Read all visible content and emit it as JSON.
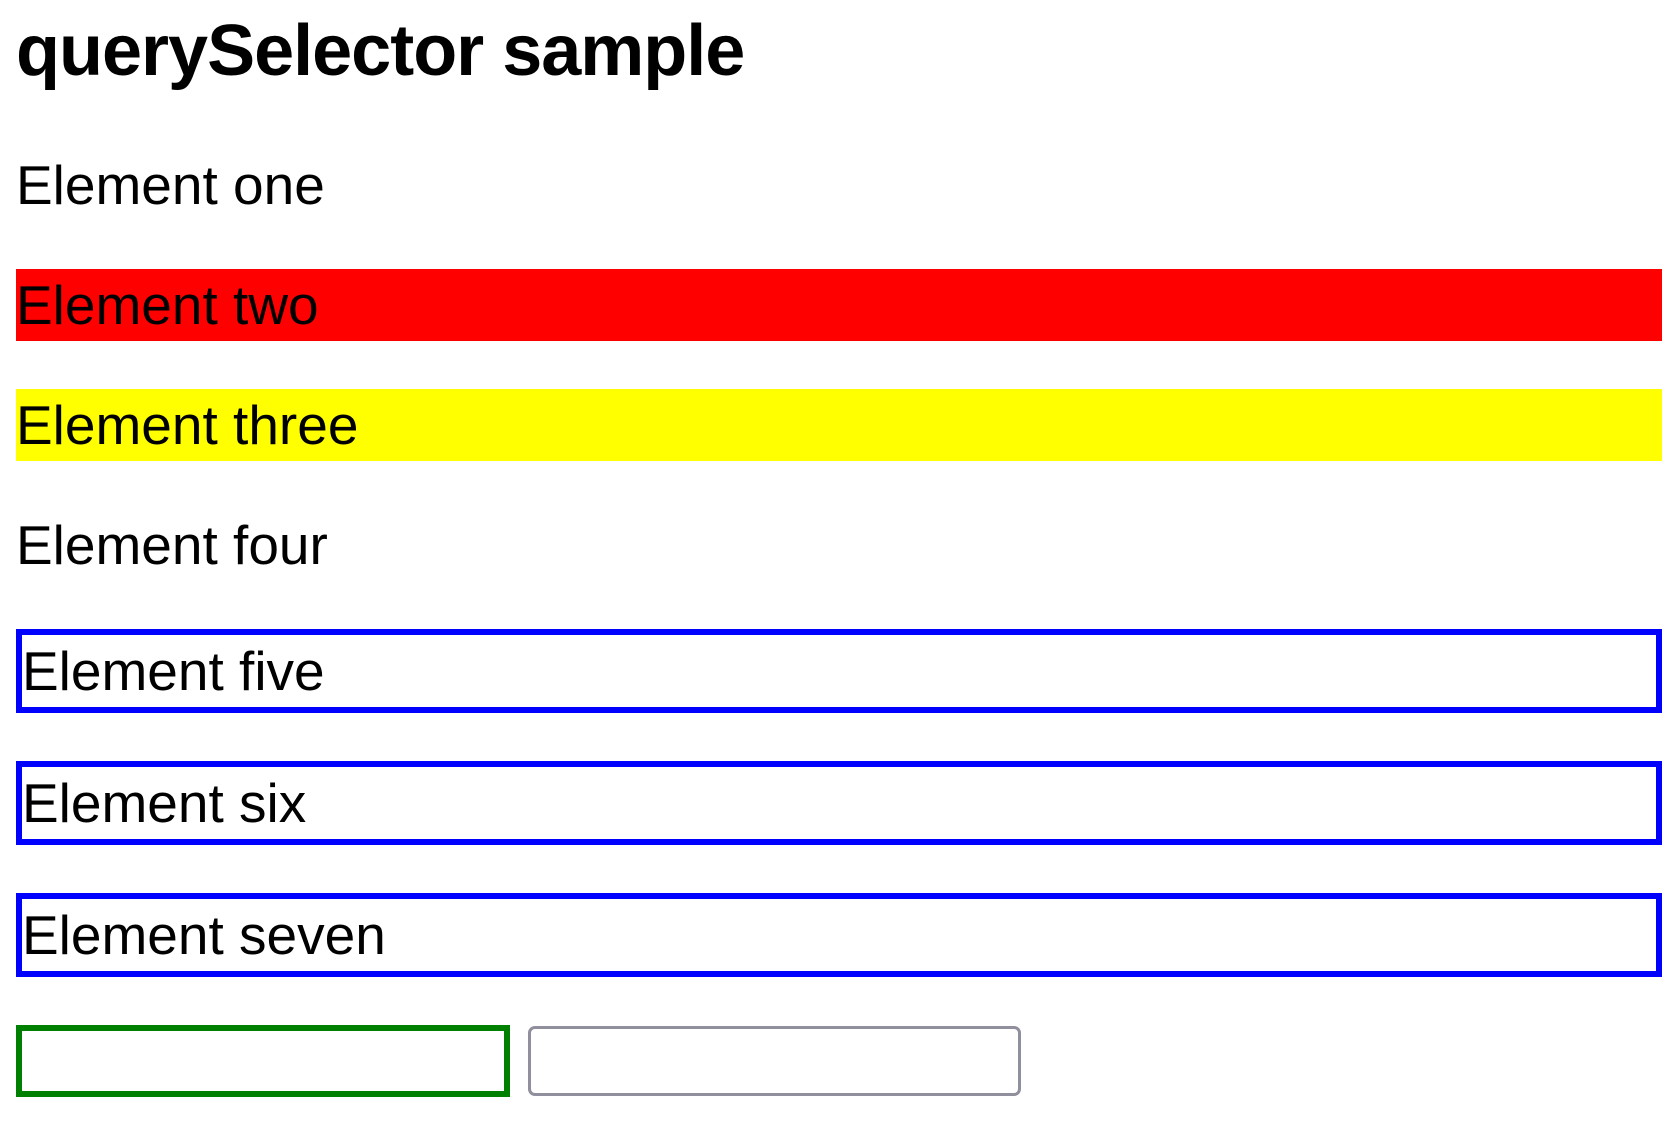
{
  "page": {
    "title": "querySelector sample",
    "paragraphs": [
      {
        "text": "Element one",
        "style": "plain"
      },
      {
        "text": "Element two",
        "style": "red-background"
      },
      {
        "text": "Element three",
        "style": "yellow-background"
      },
      {
        "text": "Element four",
        "style": "plain"
      },
      {
        "text": "Element five",
        "style": "blue-border"
      },
      {
        "text": "Element six",
        "style": "blue-border"
      },
      {
        "text": "Element seven",
        "style": "blue-border"
      }
    ],
    "inputs": [
      {
        "name": "green-bordered-input",
        "value": "",
        "border_color": "#008000"
      },
      {
        "name": "default-input",
        "value": "",
        "border_color": "#8f8f9d"
      }
    ],
    "colors": {
      "red_background": "#ff0000",
      "yellow_background": "#ffff00",
      "blue_border": "#0000ff",
      "green_border": "#008000",
      "gray_border": "#8f8f9d",
      "text": "#000000",
      "page_background": "#ffffff"
    }
  }
}
